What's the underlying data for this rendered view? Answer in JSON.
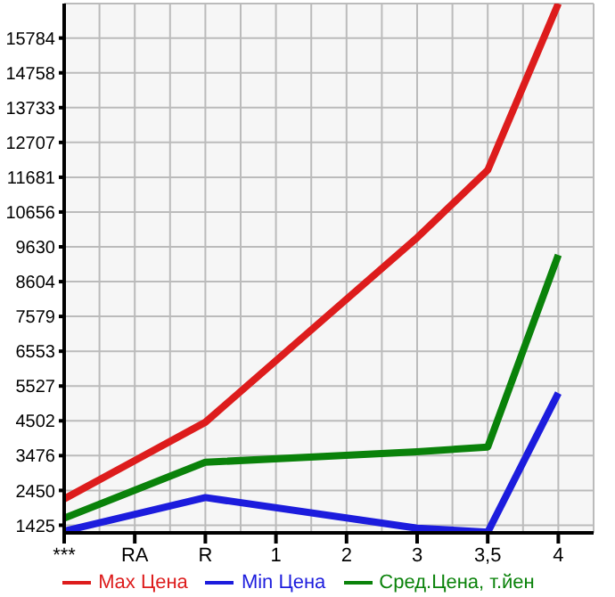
{
  "chart_data": {
    "type": "line",
    "categories": [
      "***",
      "RA",
      "R",
      "1",
      "2",
      "3",
      "3,5",
      "4"
    ],
    "series": [
      {
        "name": "Max Цена",
        "color": "#dd1c1c",
        "values": [
          2200,
          null,
          4460,
          null,
          null,
          9900,
          11890,
          16800
        ]
      },
      {
        "name": "Min Цена",
        "color": "#1c1cdd",
        "values": [
          1250,
          null,
          2240,
          null,
          null,
          1340,
          1220,
          5320
        ]
      },
      {
        "name": "Сред.Цена, т.йен",
        "color": "#0a820a",
        "values": [
          1630,
          null,
          3280,
          null,
          null,
          3590,
          3730,
          9390
        ]
      }
    ],
    "ylim": [
      1200,
      16800
    ],
    "yticks": [
      1425,
      2450,
      3476,
      4502,
      5527,
      6553,
      7579,
      8604,
      9630,
      10656,
      11681,
      12707,
      13733,
      14758,
      15784
    ],
    "grid": true,
    "legend": "bottom",
    "marker": "none",
    "line_style": "solid"
  }
}
